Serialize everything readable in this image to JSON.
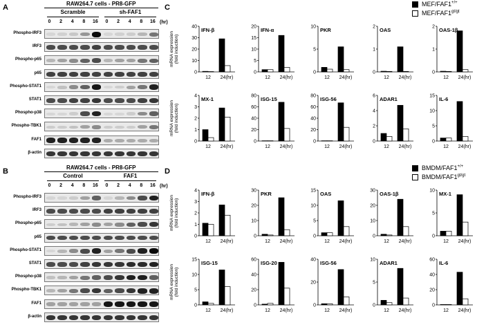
{
  "blots": [
    {
      "id": "A",
      "letter": "A",
      "title": "RAW264.7 cells - PR8-GFP",
      "groups": [
        "Scramble",
        "sh-FAF1"
      ],
      "timepoints": [
        "0",
        "2",
        "4",
        "8",
        "16"
      ],
      "unit": "(hr)",
      "rows": [
        {
          "label": "Phospho-IRF3",
          "levels": [
            0.05,
            0.08,
            0.12,
            0.35,
            1.0,
            0.05,
            0.08,
            0.1,
            0.2,
            0.5
          ]
        },
        {
          "label": "IRF3",
          "levels": [
            0.7,
            0.7,
            0.7,
            0.7,
            0.75,
            0.7,
            0.7,
            0.7,
            0.7,
            0.7
          ]
        },
        {
          "label": "Phospho-p65",
          "levels": [
            0.2,
            0.3,
            0.4,
            0.6,
            0.7,
            0.2,
            0.3,
            0.3,
            0.5,
            0.6
          ]
        },
        {
          "label": "p65",
          "levels": [
            0.75,
            0.75,
            0.75,
            0.75,
            0.75,
            0.75,
            0.75,
            0.75,
            0.75,
            0.75
          ]
        },
        {
          "label": "Phospho-STAT1",
          "levels": [
            0.05,
            0.15,
            0.4,
            0.6,
            0.95,
            0.05,
            0.1,
            0.3,
            0.5,
            0.9
          ]
        },
        {
          "label": "STAT1",
          "levels": [
            0.7,
            0.7,
            0.75,
            0.75,
            0.8,
            0.7,
            0.7,
            0.7,
            0.75,
            0.8
          ]
        },
        {
          "label": "Phospho-p38",
          "levels": [
            0.05,
            0.05,
            0.1,
            0.7,
            0.9,
            0.05,
            0.05,
            0.1,
            0.4,
            0.6
          ]
        },
        {
          "label": "Phospho-TBK1",
          "levels": [
            0.1,
            0.1,
            0.15,
            0.3,
            0.4,
            0.1,
            0.1,
            0.1,
            0.3,
            0.5
          ]
        },
        {
          "label": "FAF1",
          "levels": [
            0.9,
            0.9,
            0.9,
            0.9,
            0.9,
            0.25,
            0.25,
            0.25,
            0.25,
            0.25
          ]
        },
        {
          "label": "β-actin",
          "levels": [
            0.8,
            0.8,
            0.8,
            0.8,
            0.8,
            0.8,
            0.8,
            0.8,
            0.8,
            0.8
          ]
        }
      ]
    },
    {
      "id": "B",
      "letter": "B",
      "title": "RAW264.7 cells - PR8-GFP",
      "groups": [
        "Control",
        "FAF1"
      ],
      "timepoints": [
        "0",
        "2",
        "4",
        "8",
        "16"
      ],
      "unit": "(hr)",
      "rows": [
        {
          "label": "Phospho-IRF3",
          "levels": [
            0.05,
            0.05,
            0.1,
            0.3,
            0.6,
            0.05,
            0.2,
            0.4,
            0.7,
            0.9
          ]
        },
        {
          "label": "IRF3",
          "levels": [
            0.7,
            0.7,
            0.7,
            0.7,
            0.7,
            0.75,
            0.75,
            0.75,
            0.75,
            0.75
          ]
        },
        {
          "label": "Phospho-p65",
          "levels": [
            0.1,
            0.15,
            0.2,
            0.3,
            0.4,
            0.3,
            0.4,
            0.6,
            0.7,
            0.8
          ]
        },
        {
          "label": "p65",
          "levels": [
            0.7,
            0.7,
            0.7,
            0.7,
            0.7,
            0.7,
            0.7,
            0.7,
            0.7,
            0.7
          ]
        },
        {
          "label": "Phospho-STAT1",
          "levels": [
            0.05,
            0.2,
            0.4,
            0.7,
            0.9,
            0.3,
            0.5,
            0.7,
            0.9,
            1.0
          ]
        },
        {
          "label": "STAT1",
          "levels": [
            0.7,
            0.7,
            0.7,
            0.75,
            0.8,
            0.8,
            0.8,
            0.85,
            0.85,
            0.9
          ]
        },
        {
          "label": "Phospho-p38",
          "levels": [
            0.15,
            0.2,
            0.3,
            0.5,
            0.6,
            0.7,
            0.8,
            0.9,
            0.9,
            0.6
          ]
        },
        {
          "label": "Phospho-TBK1",
          "levels": [
            0.2,
            0.3,
            0.5,
            0.7,
            0.8,
            0.6,
            0.7,
            0.8,
            0.9,
            0.9
          ]
        },
        {
          "label": "FAF1",
          "levels": [
            0.3,
            0.3,
            0.3,
            0.3,
            0.3,
            0.95,
            0.95,
            0.95,
            0.95,
            0.95
          ]
        },
        {
          "label": "β-actin",
          "levels": [
            0.8,
            0.8,
            0.8,
            0.8,
            0.8,
            0.8,
            0.8,
            0.8,
            0.8,
            0.8
          ]
        }
      ]
    }
  ],
  "colors": {
    "black_bar": "#000000",
    "white_bar": "#ffffff",
    "strip_bg": "#e9e9e9"
  },
  "chart_data": [
    {
      "panel": "C",
      "type": "bar",
      "ylabel": "mRNA expression (fold induction)",
      "legend": [
        "MEF/FAF1+/+",
        "MEF/FAF1gt/gt"
      ],
      "legend_position": "top-right",
      "categories": [
        "12",
        "24(hr)"
      ],
      "charts": [
        {
          "title": "IFN-β",
          "ymax": 40,
          "ticks": [
            0,
            10,
            20,
            30,
            40
          ],
          "series": [
            {
              "values": [
                0.5,
                29
              ]
            },
            {
              "values": [
                0.3,
                5.5
              ]
            }
          ]
        },
        {
          "title": "IFN-α",
          "ymax": 20,
          "ticks": [
            0,
            5,
            10,
            15,
            20
          ],
          "series": [
            {
              "values": [
                1,
                16
              ]
            },
            {
              "values": [
                1,
                2
              ]
            }
          ]
        },
        {
          "title": "PKR",
          "ymax": 10,
          "ticks": [
            0,
            5,
            10
          ],
          "series": [
            {
              "values": [
                1,
                5.5
              ]
            },
            {
              "values": [
                0.6,
                0.5
              ]
            }
          ]
        },
        {
          "title": "OAS",
          "ymax": 2,
          "ticks": [
            0,
            1,
            2
          ],
          "series": [
            {
              "values": [
                0.03,
                1.1
              ]
            },
            {
              "values": [
                0.02,
                0.02
              ]
            }
          ]
        },
        {
          "title": "OAS-1β",
          "ymax": 2,
          "ticks": [
            0,
            1,
            2
          ],
          "series": [
            {
              "values": [
                0.03,
                1.8
              ]
            },
            {
              "values": [
                0.02,
                0.1
              ]
            }
          ]
        },
        {
          "title": "MX-1",
          "ymax": 4,
          "ticks": [
            0,
            1,
            2,
            3,
            4
          ],
          "series": [
            {
              "values": [
                1,
                2.9
              ]
            },
            {
              "values": [
                0.3,
                2.1
              ]
            }
          ]
        },
        {
          "title": "ISG-15",
          "ymax": 80,
          "ticks": [
            0,
            20,
            40,
            60,
            80
          ],
          "series": [
            {
              "values": [
                0.5,
                68
              ]
            },
            {
              "values": [
                0.5,
                22
              ]
            }
          ]
        },
        {
          "title": "ISG-56",
          "ymax": 80,
          "ticks": [
            0,
            20,
            40,
            60,
            80
          ],
          "series": [
            {
              "values": [
                0.5,
                67
              ]
            },
            {
              "values": [
                0.5,
                24
              ]
            }
          ]
        },
        {
          "title": "ADAR1",
          "ymax": 6,
          "ticks": [
            0,
            2,
            4,
            6
          ],
          "series": [
            {
              "values": [
                1,
                4.7
              ]
            },
            {
              "values": [
                0.6,
                1.6
              ]
            }
          ]
        },
        {
          "title": "IL-6",
          "ymax": 15,
          "ticks": [
            0,
            5,
            10,
            15
          ],
          "series": [
            {
              "values": [
                1,
                13
              ]
            },
            {
              "values": [
                1,
                1.5
              ]
            }
          ]
        }
      ]
    },
    {
      "panel": "D",
      "type": "bar",
      "ylabel": "mRNA expression (fold induction)",
      "legend": [
        "BMDM/FAF1+/+",
        "BMDM/FAF1gt/gt"
      ],
      "legend_position": "top-right",
      "categories": [
        "12",
        "24(hr)"
      ],
      "charts": [
        {
          "title": "IFN-β",
          "ymax": 4,
          "ticks": [
            0,
            1,
            2,
            3,
            4
          ],
          "series": [
            {
              "values": [
                1.1,
                2.7
              ]
            },
            {
              "values": [
                1,
                1.8
              ]
            }
          ]
        },
        {
          "title": "PKR",
          "ymax": 30,
          "ticks": [
            0,
            10,
            20,
            30
          ],
          "series": [
            {
              "values": [
                1,
                25
              ]
            },
            {
              "values": [
                0.5,
                4
              ]
            }
          ]
        },
        {
          "title": "OAS",
          "ymax": 15,
          "ticks": [
            0,
            5,
            10,
            15
          ],
          "series": [
            {
              "values": [
                1,
                11.5
              ]
            },
            {
              "values": [
                1,
                3
              ]
            }
          ]
        },
        {
          "title": "OAS-1β",
          "ymax": 30,
          "ticks": [
            0,
            10,
            20,
            30
          ],
          "series": [
            {
              "values": [
                1,
                24
              ]
            },
            {
              "values": [
                0.5,
                6
              ]
            }
          ]
        },
        {
          "title": "MX-1",
          "ymax": 10,
          "ticks": [
            0,
            5,
            10
          ],
          "series": [
            {
              "values": [
                1,
                9
              ]
            },
            {
              "values": [
                1,
                3
              ]
            }
          ]
        },
        {
          "title": "ISG-15",
          "ymax": 15,
          "ticks": [
            0,
            5,
            10,
            15
          ],
          "series": [
            {
              "values": [
                1,
                11.5
              ]
            },
            {
              "values": [
                0.5,
                6
              ]
            }
          ]
        },
        {
          "title": "ISG-20",
          "ymax": 60,
          "ticks": [
            0,
            20,
            40,
            60
          ],
          "series": [
            {
              "values": [
                1,
                56
              ]
            },
            {
              "values": [
                2,
                22
              ]
            }
          ]
        },
        {
          "title": "ISG-56",
          "ymax": 40,
          "ticks": [
            0,
            20,
            40
          ],
          "series": [
            {
              "values": [
                1,
                31
              ]
            },
            {
              "values": [
                1,
                7
              ]
            }
          ]
        },
        {
          "title": "ADAR1",
          "ymax": 10,
          "ticks": [
            0,
            5,
            10
          ],
          "series": [
            {
              "values": [
                1,
                8
              ]
            },
            {
              "values": [
                0.5,
                1.5
              ]
            }
          ]
        },
        {
          "title": "IL-6",
          "ymax": 60,
          "ticks": [
            0,
            20,
            40,
            60
          ],
          "series": [
            {
              "values": [
                0.5,
                43
              ]
            },
            {
              "values": [
                0.5,
                8
              ]
            }
          ]
        }
      ]
    }
  ]
}
